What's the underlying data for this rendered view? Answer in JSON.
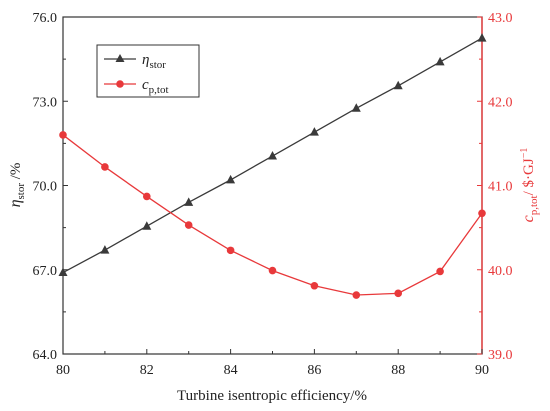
{
  "chart_data": {
    "type": "line",
    "xlabel": "Turbine isentropic efficiency/%",
    "x": [
      80,
      81,
      82,
      83,
      84,
      85,
      86,
      87,
      88,
      89,
      90
    ],
    "xlim": [
      80,
      90
    ],
    "xticks": [
      "80",
      "82",
      "84",
      "86",
      "88",
      "90"
    ],
    "ylabel_left": "ηstor /%",
    "ylabel_left_parts": {
      "symbol": "η",
      "sub": "stor",
      "unit": " /%"
    },
    "ylim_left": [
      64.0,
      76.0
    ],
    "yticks_left": [
      "64.0",
      "67.0",
      "70.0",
      "73.0",
      "76.0"
    ],
    "ylabel_right": "cp,tot/ $·GJ−1",
    "ylabel_right_parts": {
      "symbol": "c",
      "sub": "p,tot",
      "unit": "/ $·GJ",
      "sup": "−1"
    },
    "ylim_right": [
      39.0,
      43.0
    ],
    "yticks_right": [
      "39.0",
      "40.0",
      "41.0",
      "42.0",
      "43.0"
    ],
    "grid": false,
    "legend_position": "top-left",
    "series": [
      {
        "name": "ηstor",
        "name_parts": {
          "symbol": "η",
          "sub": "stor"
        },
        "axis": "left",
        "color": "#3a3a3a",
        "marker": "triangle",
        "values": [
          66.9,
          67.7,
          68.55,
          69.4,
          70.2,
          71.05,
          71.9,
          72.75,
          73.55,
          74.4,
          75.25
        ]
      },
      {
        "name": "cp,tot",
        "name_parts": {
          "symbol": "c",
          "sub": "p,tot"
        },
        "axis": "right",
        "color": "#e8393b",
        "marker": "circle",
        "values": [
          41.6,
          41.22,
          40.87,
          40.53,
          40.23,
          39.99,
          39.81,
          39.7,
          39.72,
          39.98,
          40.67
        ]
      }
    ]
  },
  "colors": {
    "left_axis": "#222222",
    "right_axis": "#e8393b"
  }
}
